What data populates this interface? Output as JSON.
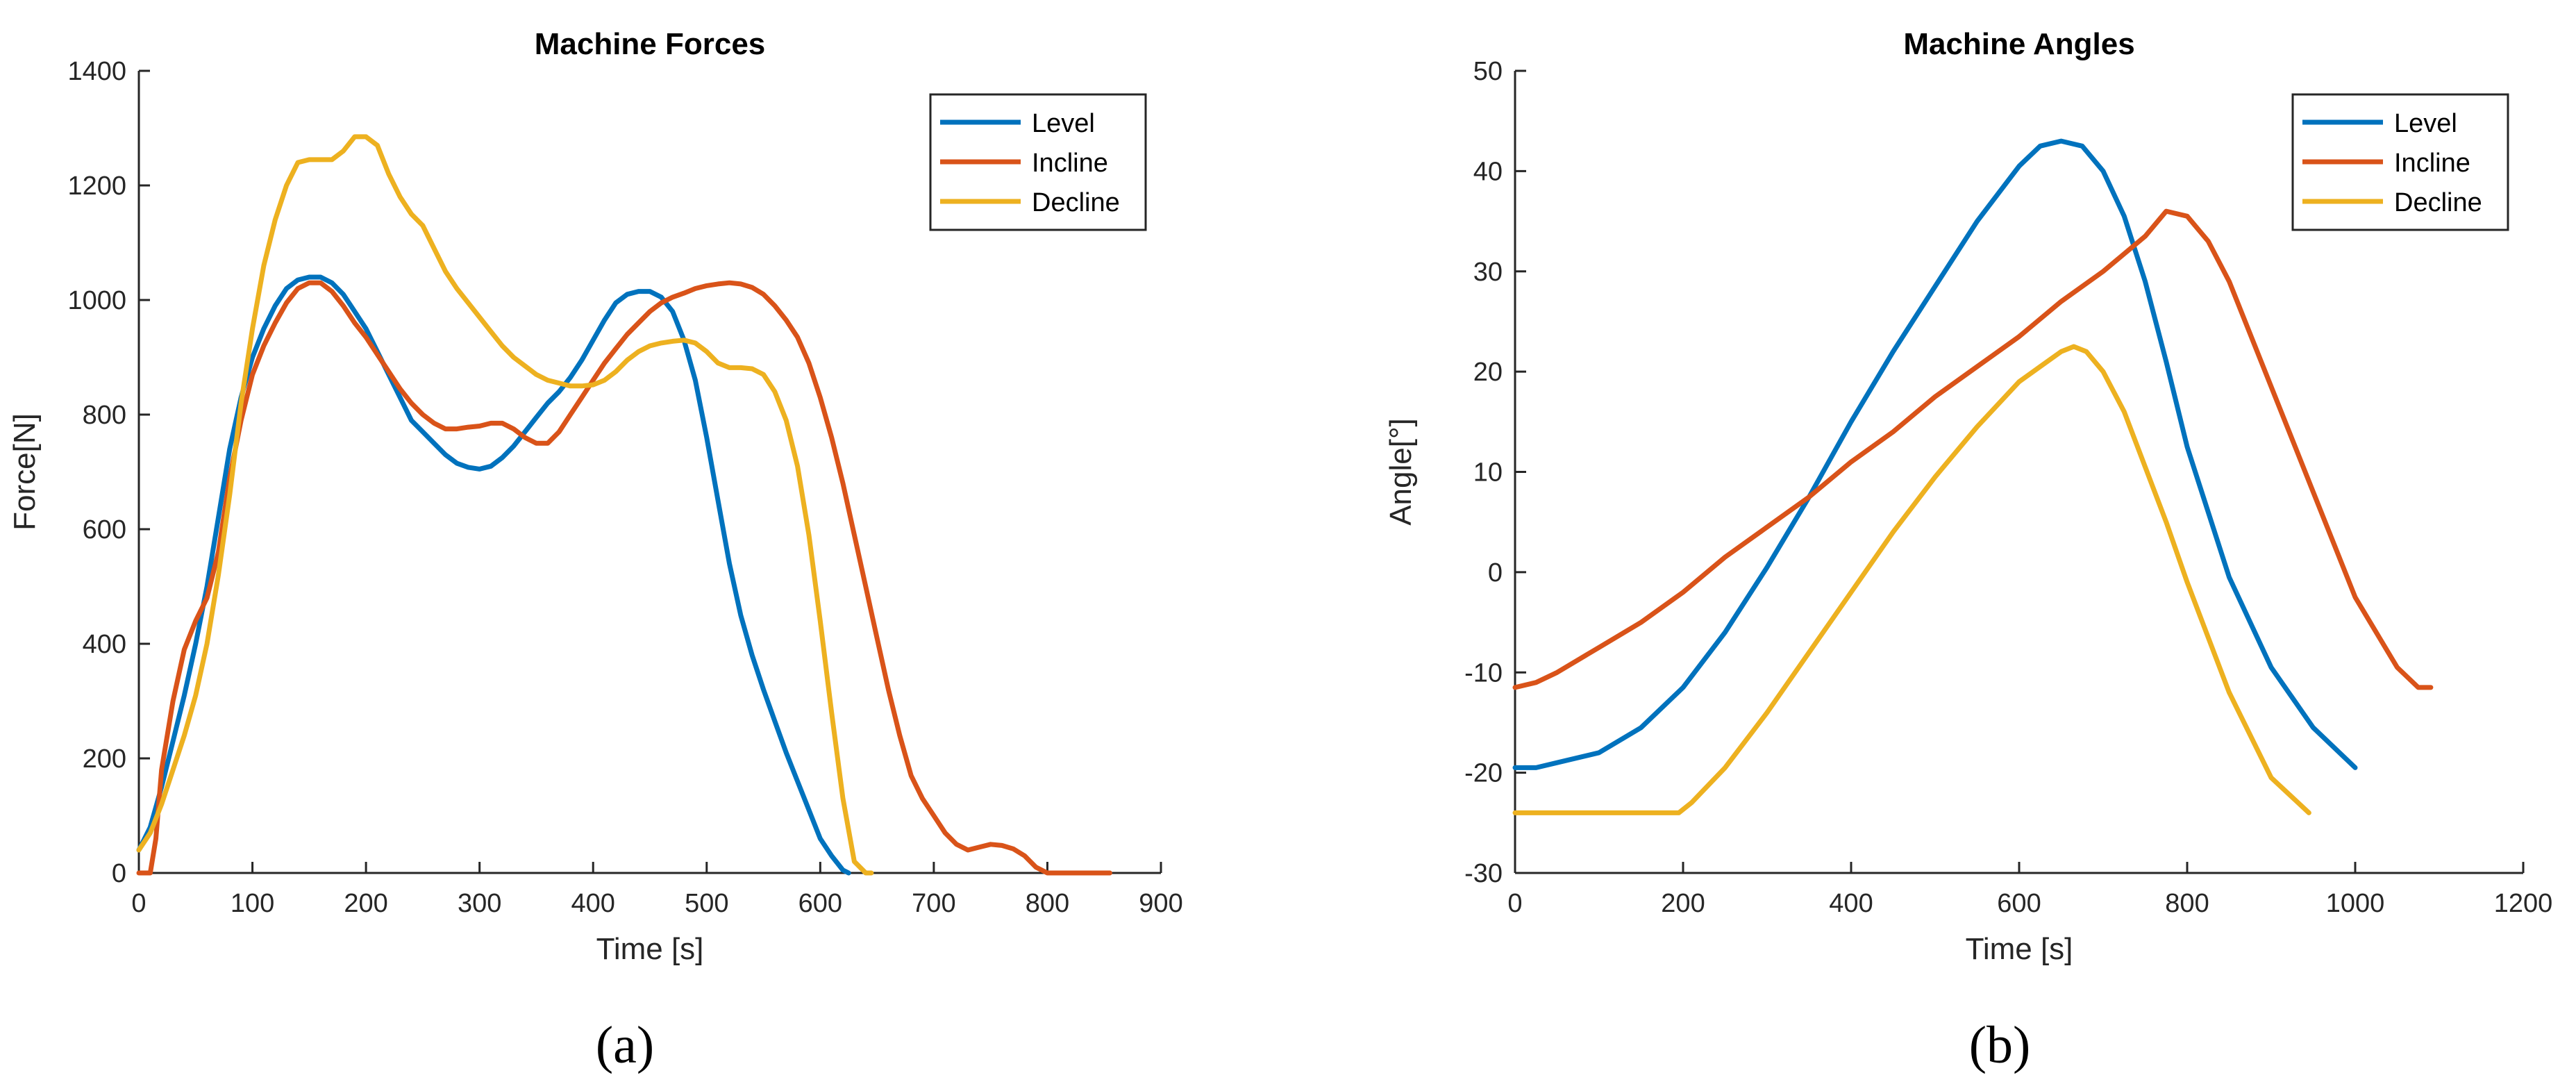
{
  "chart_data": [
    {
      "type": "line",
      "title": "Machine Forces",
      "xlabel": "Time [s]",
      "ylabel": "Force[N]",
      "xlim": [
        0,
        900
      ],
      "ylim": [
        0,
        1400
      ],
      "xticks": [
        0,
        100,
        200,
        300,
        400,
        500,
        600,
        700,
        800,
        900
      ],
      "yticks": [
        0,
        200,
        400,
        600,
        800,
        1000,
        1200,
        1400
      ],
      "grid": false,
      "legend_position": "top-right",
      "panel_label": "(a)",
      "series": [
        {
          "name": "Level",
          "color": "#0072BD",
          "x": [
            0,
            10,
            20,
            30,
            40,
            50,
            60,
            70,
            80,
            90,
            100,
            110,
            120,
            130,
            140,
            150,
            160,
            170,
            180,
            190,
            200,
            210,
            220,
            230,
            240,
            250,
            260,
            270,
            280,
            290,
            300,
            310,
            320,
            330,
            340,
            350,
            360,
            370,
            380,
            390,
            400,
            410,
            420,
            430,
            440,
            450,
            460,
            470,
            480,
            490,
            500,
            510,
            520,
            530,
            540,
            550,
            560,
            570,
            580,
            590,
            600,
            610,
            620,
            625
          ],
          "y": [
            40,
            80,
            150,
            230,
            310,
            400,
            500,
            620,
            740,
            830,
            900,
            950,
            990,
            1020,
            1035,
            1040,
            1040,
            1030,
            1010,
            980,
            950,
            910,
            870,
            830,
            790,
            770,
            750,
            730,
            715,
            708,
            705,
            710,
            725,
            745,
            770,
            795,
            820,
            840,
            865,
            895,
            930,
            965,
            995,
            1010,
            1015,
            1015,
            1005,
            980,
            930,
            860,
            760,
            650,
            540,
            450,
            380,
            320,
            265,
            210,
            160,
            110,
            60,
            30,
            5,
            0
          ]
        },
        {
          "name": "Incline",
          "color": "#D95319",
          "x": [
            0,
            10,
            15,
            20,
            30,
            40,
            50,
            60,
            70,
            80,
            90,
            100,
            110,
            120,
            130,
            140,
            150,
            160,
            170,
            180,
            190,
            200,
            210,
            220,
            230,
            240,
            250,
            260,
            270,
            280,
            290,
            300,
            310,
            320,
            330,
            340,
            350,
            360,
            370,
            380,
            390,
            400,
            410,
            420,
            430,
            440,
            450,
            460,
            470,
            480,
            490,
            500,
            510,
            520,
            530,
            540,
            550,
            560,
            570,
            580,
            590,
            600,
            610,
            620,
            630,
            640,
            650,
            660,
            670,
            680,
            690,
            700,
            710,
            720,
            730,
            740,
            750,
            760,
            770,
            780,
            790,
            800,
            810,
            820,
            830,
            840,
            850,
            855
          ],
          "y": [
            0,
            0,
            60,
            180,
            300,
            390,
            440,
            480,
            560,
            690,
            790,
            870,
            920,
            960,
            995,
            1020,
            1030,
            1030,
            1015,
            990,
            960,
            935,
            905,
            875,
            845,
            820,
            800,
            785,
            775,
            775,
            778,
            780,
            785,
            785,
            775,
            760,
            750,
            750,
            770,
            800,
            830,
            860,
            890,
            915,
            940,
            960,
            980,
            995,
            1005,
            1012,
            1020,
            1025,
            1028,
            1030,
            1028,
            1022,
            1010,
            990,
            965,
            935,
            890,
            830,
            760,
            680,
            590,
            500,
            410,
            320,
            240,
            170,
            130,
            100,
            70,
            50,
            40,
            45,
            50,
            48,
            42,
            30,
            10,
            0,
            0,
            0,
            0,
            0,
            0,
            0
          ]
        },
        {
          "name": "Decline",
          "color": "#EDB120",
          "x": [
            0,
            10,
            20,
            30,
            40,
            50,
            60,
            70,
            80,
            90,
            100,
            110,
            120,
            130,
            140,
            150,
            160,
            170,
            180,
            190,
            200,
            210,
            220,
            230,
            240,
            250,
            260,
            270,
            280,
            290,
            300,
            310,
            320,
            330,
            340,
            350,
            360,
            370,
            380,
            390,
            400,
            410,
            420,
            430,
            440,
            450,
            460,
            470,
            480,
            490,
            500,
            510,
            520,
            530,
            540,
            550,
            560,
            570,
            580,
            590,
            600,
            610,
            620,
            630,
            640,
            645
          ],
          "y": [
            40,
            70,
            120,
            180,
            240,
            310,
            400,
            520,
            660,
            820,
            950,
            1060,
            1140,
            1200,
            1240,
            1245,
            1245,
            1245,
            1260,
            1285,
            1285,
            1270,
            1220,
            1180,
            1150,
            1130,
            1090,
            1050,
            1020,
            995,
            970,
            945,
            920,
            900,
            885,
            870,
            860,
            855,
            850,
            850,
            852,
            860,
            875,
            895,
            910,
            920,
            925,
            928,
            930,
            925,
            910,
            890,
            882,
            882,
            880,
            870,
            840,
            790,
            710,
            590,
            440,
            280,
            130,
            20,
            0,
            0
          ]
        }
      ]
    },
    {
      "type": "line",
      "title": "Machine Angles",
      "xlabel": "Time [s]",
      "ylabel": "Angle[°]",
      "xlim": [
        0,
        1200
      ],
      "ylim": [
        -30,
        50
      ],
      "xticks": [
        0,
        200,
        400,
        600,
        800,
        1000,
        1200
      ],
      "yticks": [
        -30,
        -20,
        -10,
        0,
        10,
        20,
        30,
        40,
        50
      ],
      "grid": false,
      "legend_position": "top-right",
      "panel_label": "(b)",
      "series": [
        {
          "name": "Level",
          "color": "#0072BD",
          "x": [
            0,
            25,
            50,
            100,
            150,
            200,
            250,
            300,
            350,
            400,
            450,
            500,
            550,
            600,
            625,
            650,
            675,
            700,
            725,
            750,
            775,
            800,
            850,
            900,
            950,
            1000
          ],
          "y": [
            -19.5,
            -19.5,
            -19,
            -18,
            -15.5,
            -11.5,
            -6,
            0.5,
            7.5,
            15,
            22,
            28.5,
            35,
            40.5,
            42.5,
            43,
            42.5,
            40,
            35.5,
            29,
            21,
            12.5,
            -0.5,
            -9.5,
            -15.5,
            -19.5
          ]
        },
        {
          "name": "Incline",
          "color": "#D95319",
          "x": [
            0,
            25,
            50,
            100,
            150,
            200,
            250,
            300,
            350,
            400,
            450,
            500,
            550,
            600,
            650,
            700,
            750,
            775,
            800,
            825,
            850,
            900,
            950,
            1000,
            1050,
            1075,
            1090
          ],
          "y": [
            -11.5,
            -11,
            -10,
            -7.5,
            -5,
            -2,
            1.5,
            4.5,
            7.5,
            11,
            14,
            17.5,
            20.5,
            23.5,
            27,
            30,
            33.5,
            36,
            35.5,
            33,
            29,
            18.5,
            8,
            -2.5,
            -9.5,
            -11.5,
            -11.5
          ]
        },
        {
          "name": "Decline",
          "color": "#EDB120",
          "x": [
            0,
            50,
            100,
            150,
            195,
            210,
            250,
            300,
            350,
            400,
            450,
            500,
            550,
            600,
            625,
            650,
            665,
            680,
            700,
            725,
            750,
            775,
            800,
            850,
            900,
            945
          ],
          "y": [
            -24,
            -24,
            -24,
            -24,
            -24,
            -23,
            -19.5,
            -14,
            -8,
            -2,
            4,
            9.5,
            14.5,
            19,
            20.5,
            22,
            22.5,
            22,
            20,
            16,
            10.5,
            5,
            -1,
            -12,
            -20.5,
            -24
          ]
        }
      ]
    }
  ]
}
